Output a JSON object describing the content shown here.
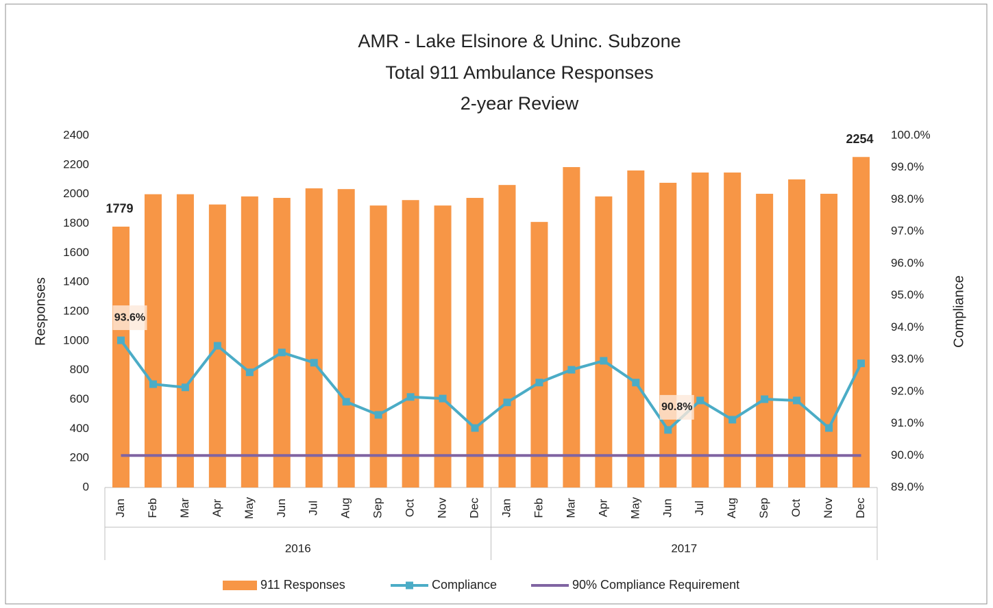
{
  "chart_data": {
    "type": "bar",
    "title": [
      "AMR - Lake Elsinore & Uninc. Subzone",
      "Total 911 Ambulance Responses",
      "2-year Review"
    ],
    "y_label": "Responses",
    "y2_label": "Compliance",
    "categories": [
      "Jan",
      "Feb",
      "Mar",
      "Apr",
      "May",
      "Jun",
      "Jul",
      "Aug",
      "Sep",
      "Oct",
      "Nov",
      "Dec",
      "Jan",
      "Feb",
      "Mar",
      "Apr",
      "May",
      "Jun",
      "Jul",
      "Aug",
      "Sep",
      "Oct",
      "Nov",
      "Dec"
    ],
    "x_groups": [
      "2016",
      "2017"
    ],
    "series": [
      {
        "name": "911 Responses",
        "type": "bar",
        "color": "#f79646",
        "values": [
          1779,
          2000,
          2000,
          1930,
          1985,
          1975,
          2040,
          2035,
          1923,
          1960,
          1923,
          1975,
          2063,
          1811,
          2185,
          1985,
          2162,
          2078,
          2148,
          2148,
          2003,
          2101,
          2003,
          2254
        ],
        "value_labels": [
          "1779",
          null,
          null,
          null,
          null,
          null,
          null,
          null,
          null,
          null,
          null,
          null,
          null,
          null,
          null,
          null,
          null,
          null,
          null,
          null,
          null,
          null,
          null,
          "2254"
        ]
      },
      {
        "name": "Compliance",
        "type": "line",
        "axis": "y2",
        "color": "#4bacc6",
        "marker": "square",
        "values": [
          93.6,
          92.23,
          92.13,
          93.43,
          92.6,
          93.22,
          92.9,
          91.68,
          91.27,
          91.83,
          91.78,
          90.86,
          91.66,
          92.28,
          92.68,
          92.96,
          92.28,
          90.8,
          91.72,
          91.12,
          91.76,
          91.72,
          90.86,
          92.88
        ],
        "value_labels": [
          "93.6%",
          null,
          null,
          null,
          null,
          null,
          null,
          null,
          null,
          null,
          null,
          null,
          null,
          null,
          null,
          null,
          null,
          "90.8%",
          null,
          null,
          null,
          null,
          null,
          null
        ]
      },
      {
        "name": "90% Compliance Requirement",
        "type": "line",
        "axis": "y2",
        "color": "#8064a2",
        "values": [
          90,
          90,
          90,
          90,
          90,
          90,
          90,
          90,
          90,
          90,
          90,
          90,
          90,
          90,
          90,
          90,
          90,
          90,
          90,
          90,
          90,
          90,
          90,
          90
        ]
      }
    ],
    "ylim": [
      0,
      2400
    ],
    "yticks": [
      0,
      200,
      400,
      600,
      800,
      1000,
      1200,
      1400,
      1600,
      1800,
      2000,
      2200,
      2400
    ],
    "y2lim": [
      89,
      100
    ],
    "y2ticks": [
      {
        "value": 89,
        "label": "89.0%"
      },
      {
        "value": 90,
        "label": "90.0%"
      },
      {
        "value": 91,
        "label": "91.0%"
      },
      {
        "value": 92,
        "label": "92.0%"
      },
      {
        "value": 93,
        "label": "93.0%"
      },
      {
        "value": 94,
        "label": "94.0%"
      },
      {
        "value": 95,
        "label": "95.0%"
      },
      {
        "value": 96,
        "label": "96.0%"
      },
      {
        "value": 97,
        "label": "97.0%"
      },
      {
        "value": 98,
        "label": "98.0%"
      },
      {
        "value": 99,
        "label": "99.0%"
      },
      {
        "value": 100,
        "label": "100.0%"
      }
    ],
    "legend": "bottom",
    "grid": false
  }
}
